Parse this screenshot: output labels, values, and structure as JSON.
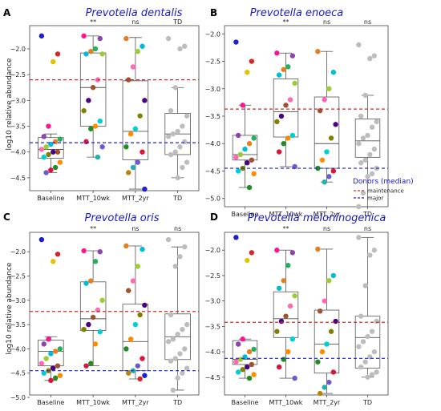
{
  "legend": {
    "title": "Donors (median)",
    "items": [
      {
        "label": "maintenance",
        "color": "#d62728"
      },
      {
        "label": "major",
        "color": "#1f1fd6"
      }
    ]
  },
  "point_colors": [
    "#1f1fd6",
    "#d62728",
    "#e6c300",
    "#ff1493",
    "#8e44ad",
    "#27ae60",
    "#e67e22",
    "#00bcd4",
    "#9acd32",
    "#ff69b4",
    "#a0522d",
    "#4b0082",
    "#808000",
    "#00ced1",
    "#ff8c00",
    "#228b22",
    "#dc143c",
    "#6a5acd",
    "#20b2aa",
    "#b8860b"
  ],
  "chart_data": [
    {
      "type": "box",
      "panel_label": "A",
      "title": "Prevotella dentalis",
      "ylabel": "log10 relative abundance",
      "ylim": [
        -4.75,
        -1.55
      ],
      "yticks": [
        -2.0,
        -2.5,
        -3.0,
        -3.5,
        -4.0,
        -4.5
      ],
      "categories": [
        "Baseline",
        "MTT_10wk",
        "MTT_2yr",
        "TD"
      ],
      "significance": [
        "",
        "**",
        "ns",
        "TD"
      ],
      "ref_lines": {
        "maintenance": -2.6,
        "major": -3.82
      },
      "boxes": [
        {
          "q1": -4.12,
          "median": -3.95,
          "q3": -3.72,
          "lo": -4.4,
          "hi": -3.65
        },
        {
          "q1": -3.5,
          "median": -2.75,
          "q3": -2.08,
          "lo": -4.1,
          "hi": -1.75
        },
        {
          "q1": -4.15,
          "median": -3.6,
          "q3": -2.62,
          "lo": -4.72,
          "hi": -1.78
        },
        {
          "q1": -4.05,
          "median": -3.65,
          "q3": -3.25,
          "lo": -4.5,
          "hi": -2.75
        }
      ],
      "points": [
        [
          -1.75,
          -2.1,
          -2.25,
          -3.5,
          -3.7,
          -3.75,
          -3.8,
          -3.85,
          -3.9,
          -3.95,
          -4.0,
          -4.0,
          -4.05,
          -4.1,
          -4.2,
          -4.3,
          -4.35,
          -4.4
        ],
        [
          -1.75,
          -1.8,
          -2.0,
          -2.05,
          -2.1,
          -2.1,
          -2.6,
          -2.75,
          -3.0,
          -3.2,
          -3.4,
          -3.5,
          -3.55,
          -3.8,
          -3.9,
          -4.1
        ],
        [
          -1.8,
          -1.95,
          -2.05,
          -2.35,
          -2.6,
          -3.0,
          -3.3,
          -3.55,
          -3.65,
          -3.9,
          -4.0,
          -4.2,
          -4.3,
          -4.4,
          -4.72
        ],
        [
          -1.8,
          -1.95,
          -2.0,
          -2.75,
          -3.2,
          -3.3,
          -3.5,
          -3.6,
          -3.65,
          -3.7,
          -3.8,
          -3.9,
          -4.0,
          -4.05,
          -4.2,
          -4.3,
          -4.5
        ]
      ],
      "gray_series": [
        3
      ]
    },
    {
      "type": "box",
      "panel_label": "B",
      "title": "Prevotella enoeca",
      "ylabel": "",
      "ylim": [
        -5.15,
        -1.85
      ],
      "yticks": [
        -2.0,
        -2.5,
        -3.0,
        -3.5,
        -4.0,
        -4.5,
        -5.0
      ],
      "categories": [
        "Baseline",
        "MTT_10wk",
        "MTT_2yr",
        "TD"
      ],
      "significance": [
        "",
        "**",
        "ns",
        "ns"
      ],
      "ref_lines": {
        "maintenance": -3.37,
        "major": -4.45
      },
      "boxes": [
        {
          "q1": -4.3,
          "median": -4.2,
          "q3": -3.85,
          "lo": -4.8,
          "hi": -3.3
        },
        {
          "q1": -3.88,
          "median": -3.42,
          "q3": -2.82,
          "lo": -4.42,
          "hi": -2.35
        },
        {
          "q1": -4.45,
          "median": -4.0,
          "q3": -3.15,
          "lo": -4.7,
          "hi": -2.32
        },
        {
          "q1": -4.25,
          "median": -3.95,
          "q3": -3.55,
          "lo": -5.15,
          "hi": -3.12
        }
      ],
      "points": [
        [
          -2.15,
          -2.5,
          -2.7,
          -3.3,
          -3.85,
          -3.9,
          -4.0,
          -4.1,
          -4.2,
          -4.25,
          -4.3,
          -4.35,
          -4.45,
          -4.5,
          -4.55,
          -4.8
        ],
        [
          -2.35,
          -2.4,
          -2.6,
          -2.65,
          -2.75,
          -2.9,
          -3.2,
          -3.3,
          -3.5,
          -3.6,
          -3.85,
          -3.9,
          -4.0,
          -4.15,
          -4.42
        ],
        [
          -2.32,
          -2.7,
          -3.0,
          -3.2,
          -3.4,
          -3.65,
          -3.9,
          -4.15,
          -4.3,
          -4.45,
          -4.5,
          -4.6,
          -4.7
        ],
        [
          -2.2,
          -2.4,
          -2.45,
          -3.12,
          -3.5,
          -3.6,
          -3.7,
          -3.85,
          -3.9,
          -4.0,
          -4.1,
          -4.2,
          -4.3,
          -4.35,
          -4.45,
          -4.55,
          -4.6,
          -4.9,
          -5.15
        ]
      ],
      "gray_series": [
        3
      ]
    },
    {
      "type": "box",
      "panel_label": "C",
      "title": "Prevotella oris",
      "ylabel": "log10 relative abundance",
      "ylim": [
        -4.95,
        -1.6
      ],
      "yticks": [
        -2.0,
        -2.5,
        -3.0,
        -3.5,
        -4.0,
        -4.5,
        -5.0
      ],
      "categories": [
        "Baseline",
        "MTT_10wk",
        "MTT_2yr",
        "TD"
      ],
      "significance": [
        "",
        "**",
        "ns",
        "ns"
      ],
      "ref_lines": {
        "maintenance": -3.23,
        "major": -4.45
      },
      "boxes": [
        {
          "q1": -4.35,
          "median": -4.05,
          "q3": -3.82,
          "lo": -4.65,
          "hi": -3.75
        },
        {
          "q1": -3.62,
          "median": -3.38,
          "q3": -2.62,
          "lo": -4.35,
          "hi": -1.98
        },
        {
          "q1": -4.45,
          "median": -3.85,
          "q3": -3.08,
          "lo": -4.62,
          "hi": -1.88
        },
        {
          "q1": -4.22,
          "median": -3.75,
          "q3": -3.28,
          "lo": -4.85,
          "hi": -1.9
        }
      ],
      "points": [
        [
          -1.75,
          -2.05,
          -2.2,
          -3.8,
          -3.9,
          -4.0,
          -4.05,
          -4.1,
          -4.2,
          -4.3,
          -4.35,
          -4.4,
          -4.45,
          -4.5,
          -4.55,
          -4.6,
          -4.65
        ],
        [
          -1.98,
          -2.0,
          -2.2,
          -2.6,
          -2.65,
          -3.0,
          -3.2,
          -3.35,
          -3.5,
          -3.6,
          -3.65,
          -3.9,
          -4.3,
          -4.35
        ],
        [
          -1.88,
          -1.95,
          -2.3,
          -2.6,
          -2.8,
          -3.1,
          -3.3,
          -3.5,
          -3.8,
          -4.0,
          -4.2,
          -4.35,
          -4.45,
          -4.5,
          -4.55,
          -4.62
        ],
        [
          -1.75,
          -1.9,
          -2.1,
          -2.3,
          -3.3,
          -3.5,
          -3.6,
          -3.7,
          -3.8,
          -3.85,
          -4.0,
          -4.1,
          -4.2,
          -4.25,
          -4.4,
          -4.5,
          -4.6,
          -4.85
        ]
      ],
      "gray_series": [
        3
      ]
    },
    {
      "type": "box",
      "panel_label": "D",
      "title": "Prevotella meloninogenica",
      "ylabel": "",
      "ylim": [
        -4.85,
        -1.65
      ],
      "yticks": [
        -2.0,
        -2.5,
        -3.0,
        -3.5,
        -4.0,
        -4.5
      ],
      "categories": [
        "Baseline",
        "MTT_10wk",
        "MTT_2yr",
        "TD"
      ],
      "significance": [
        "",
        "**",
        "ns",
        "ns"
      ],
      "ref_lines": {
        "maintenance": -3.42,
        "major": -4.13
      },
      "boxes": [
        {
          "q1": -4.25,
          "median": -4.15,
          "q3": -3.78,
          "lo": -4.52,
          "hi": -3.75
        },
        {
          "q1": -3.72,
          "median": -3.35,
          "q3": -2.82,
          "lo": -4.52,
          "hi": -2.0
        },
        {
          "q1": -4.42,
          "median": -3.85,
          "q3": -3.18,
          "lo": -4.82,
          "hi": -1.98
        },
        {
          "q1": -4.32,
          "median": -3.72,
          "q3": -3.3,
          "lo": -4.5,
          "hi": -1.75
        }
      ],
      "points": [
        [
          -1.75,
          -2.05,
          -2.2,
          -3.75,
          -3.85,
          -3.95,
          -4.0,
          -4.1,
          -4.15,
          -4.2,
          -4.25,
          -4.3,
          -4.35,
          -4.4,
          -4.45,
          -4.52
        ],
        [
          -2.0,
          -2.05,
          -2.3,
          -2.6,
          -2.75,
          -2.9,
          -3.1,
          -3.3,
          -3.4,
          -3.6,
          -3.75,
          -4.0,
          -4.15,
          -4.3,
          -4.52
        ],
        [
          -1.98,
          -2.5,
          -2.6,
          -3.0,
          -3.2,
          -3.4,
          -3.6,
          -3.85,
          -4.0,
          -4.2,
          -4.4,
          -4.6,
          -4.7,
          -4.82
        ],
        [
          -1.75,
          -2.0,
          -2.1,
          -2.7,
          -3.3,
          -3.4,
          -3.6,
          -3.7,
          -3.8,
          -3.9,
          -4.0,
          -4.1,
          -4.2,
          -4.3,
          -4.4,
          -4.45,
          -4.5
        ]
      ],
      "gray_series": [
        3
      ]
    }
  ]
}
